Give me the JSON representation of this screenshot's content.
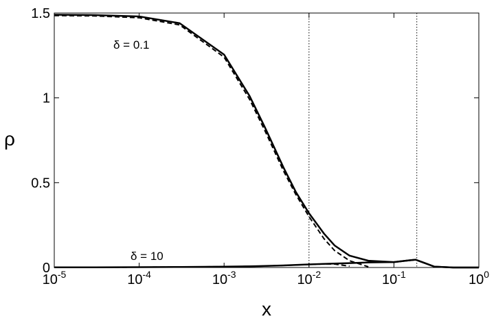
{
  "chart_data": {
    "type": "line",
    "xscale": "log",
    "xlabel": "x",
    "ylabel": "ρ",
    "annotations": [
      "δ = 0.1",
      "δ = 10"
    ],
    "x": [
      1e-05,
      3e-05,
      0.0001,
      0.0003,
      0.001,
      0.002,
      0.003,
      0.005,
      0.007,
      0.01,
      0.015,
      0.02,
      0.03,
      0.05,
      0.1,
      0.15,
      0.18,
      0.22,
      0.3,
      0.5,
      1
    ],
    "series": [
      {
        "color": "#000000",
        "style": "solid",
        "values": [
          1.49,
          1.488,
          1.48,
          1.44,
          1.255,
          1.01,
          0.83,
          0.59,
          0.445,
          0.32,
          0.2,
          0.13,
          0.07,
          0.04,
          0.032,
          0.042,
          0.046,
          0.03,
          0.005,
          0,
          0
        ]
      },
      {
        "color": "#000000",
        "style": "dashed",
        "values": [
          1.485,
          1.483,
          1.472,
          1.43,
          1.24,
          0.99,
          0.81,
          0.57,
          0.43,
          0.3,
          0.17,
          0.1,
          0.04,
          0.004,
          null,
          null,
          null,
          null,
          null,
          null,
          null
        ]
      },
      {
        "color": "#000000",
        "style": "solid",
        "values": [
          0.001,
          0.001,
          0.002,
          0.003,
          0.005,
          0.007,
          0.009,
          0.012,
          0.015,
          0.018,
          0.021,
          0.023,
          0.026,
          0.03,
          0.032,
          0.042,
          0.046,
          0.03,
          0.005,
          0,
          0
        ]
      },
      {
        "color": "#000000",
        "style": "dashed",
        "values": [
          0.001,
          0.001,
          0.002,
          0.003,
          0.005,
          0.007,
          0.009,
          0.012,
          0.015,
          0.018,
          0.021,
          0.02,
          0.008,
          null,
          null,
          null,
          null,
          null,
          null,
          null,
          null
        ]
      }
    ],
    "vlines": [
      0.01,
      0.186
    ],
    "xlim": [
      1e-05,
      1
    ],
    "xticks": [
      {
        "value": 1e-05,
        "label": "10",
        "exponent": "-5"
      },
      {
        "value": 0.0001,
        "label": "10",
        "exponent": "-4"
      },
      {
        "value": 0.001,
        "label": "10",
        "exponent": "-3"
      },
      {
        "value": 0.01,
        "label": "10",
        "exponent": "-2"
      },
      {
        "value": 0.1,
        "label": "10",
        "exponent": "-1"
      },
      {
        "value": 1,
        "label": "10",
        "exponent": "0"
      }
    ],
    "ylim": [
      0,
      1.5
    ],
    "yticks": [
      0,
      0.5,
      1,
      1.5
    ]
  }
}
